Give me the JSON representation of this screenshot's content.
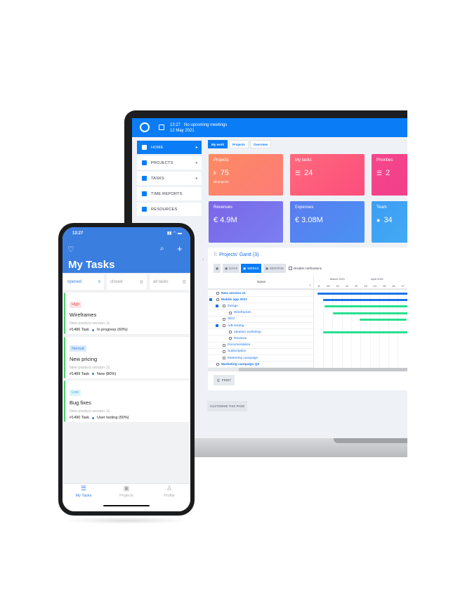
{
  "laptop": {
    "topbar": {
      "time": "13:27",
      "meetings": "No upcoming meetings",
      "date": "12 May 2021"
    },
    "sidebar": {
      "items": [
        {
          "label": "HOME",
          "icon": "dashboard-icon",
          "active": true,
          "has_submenu": true
        },
        {
          "label": "PROJECTS",
          "icon": "hierarchy-icon",
          "has_submenu": true
        },
        {
          "label": "TASKS",
          "icon": "clipboard-icon",
          "has_submenu": true
        },
        {
          "label": "TIME REPORTS",
          "icon": "stopwatch-icon"
        },
        {
          "label": "RESOURCES",
          "icon": "id-badge-icon"
        }
      ]
    },
    "tabs": [
      {
        "label": "My work",
        "active": true
      },
      {
        "label": "Projects"
      },
      {
        "label": "Overview"
      }
    ],
    "cards": [
      {
        "label": "Projects",
        "value": "75",
        "sub": "all projects",
        "icon": "hierarchy-icon",
        "color_from": "#fd8a62",
        "color_to": "#fd7c78"
      },
      {
        "label": "My tasks",
        "value": "24",
        "icon": "list-check-icon",
        "color_from": "#fe6a7c",
        "color_to": "#fc4d7d"
      },
      {
        "label": "Priorities",
        "value": "2",
        "icon": "list-icon",
        "color_from": "#f5468a",
        "color_to": "#f03c8c"
      },
      {
        "label": "Revenues",
        "value": "€ 4.9M",
        "color_from": "#7b66e8",
        "color_to": "#7a7ff0"
      },
      {
        "label": "Expenses",
        "value": "€ 3.08M",
        "color_from": "#5a7cf0",
        "color_to": "#4a93f2"
      },
      {
        "label": "Team",
        "value": "34",
        "icon": "user-icon",
        "color_from": "#3d9df3",
        "color_to": "#46b0f5"
      }
    ],
    "gantt": {
      "title": "Projects' Gantt (3)",
      "toolbar": {
        "days": "DAYS",
        "weeks": "WEEKS",
        "months": "MONTHS",
        "disable_notifications": "Disable notifications",
        "active_scale": "WEEKS"
      },
      "name_header": "Name",
      "months": [
        "March 2021",
        "April 2021"
      ],
      "weeks": [
        "8",
        "09",
        "10",
        "11",
        "12",
        "13",
        "14",
        "15",
        "16",
        "17",
        "18"
      ],
      "rows": [
        {
          "name": "New version 11",
          "level": 0,
          "bold": true,
          "bar": {
            "start": 8.4,
            "end": 19,
            "color": "#1a73e8"
          }
        },
        {
          "name": "Mobile app 2021",
          "level": 0,
          "bold": true,
          "collapsible": true,
          "bar": {
            "start": 9,
            "end": 19,
            "color": "#1a73e8"
          }
        },
        {
          "name": "Design",
          "level": 1,
          "collapsible": true,
          "bar": {
            "start": 9.1,
            "end": 19,
            "color": "#27e08f"
          }
        },
        {
          "name": "Wireframes",
          "level": 2,
          "bar": {
            "start": 10,
            "end": 19,
            "color": "#27e08f"
          }
        },
        {
          "name": "SEO",
          "level": 1,
          "bar": {
            "start": 12.9,
            "end": 17.9,
            "color": "#27e08f"
          }
        },
        {
          "name": "A/B testing",
          "level": 1,
          "collapsible": true
        },
        {
          "name": "Ideation workshop",
          "level": 2,
          "bar": {
            "start": 9,
            "end": 19,
            "color": "#27e08f"
          }
        },
        {
          "name": "Reviews",
          "level": 2
        },
        {
          "name": "Documentation",
          "level": 1
        },
        {
          "name": "Subscription",
          "level": 1
        },
        {
          "name": "Marketing campaign",
          "level": 1
        },
        {
          "name": "Marketing campaign Q3",
          "level": 0,
          "bold": true
        }
      ],
      "print": "PRINT"
    },
    "customise": "CUSTOMISE THIS PAGE"
  },
  "phone": {
    "status_time": "13:27",
    "title": "My Tasks",
    "filters": [
      {
        "label": "opened",
        "active": true
      },
      {
        "label": "closed"
      },
      {
        "label": "all tasks"
      }
    ],
    "tasks": [
      {
        "priority": "High",
        "priority_bg": "#fde3e3",
        "priority_color": "#e04848",
        "title": "Wireframes",
        "project": "New product version 11",
        "id": "#1486 Task",
        "status": "In progress (60%)"
      },
      {
        "priority": "Normal",
        "priority_bg": "#dcebfd",
        "priority_color": "#3a7ee0",
        "title": "New pricing",
        "project": "New product version 11",
        "id": "#1489 Task",
        "status": "New (80%)"
      },
      {
        "priority": "Low",
        "priority_bg": "#def3fb",
        "priority_color": "#3ab0e0",
        "title": "Bug fixes",
        "project": "New product version 11",
        "id": "#1490 Task",
        "status": "User testing (50%)"
      }
    ],
    "tabbar": [
      {
        "label": "My Tasks",
        "active": true
      },
      {
        "label": "Projects"
      },
      {
        "label": "Profile"
      }
    ]
  }
}
